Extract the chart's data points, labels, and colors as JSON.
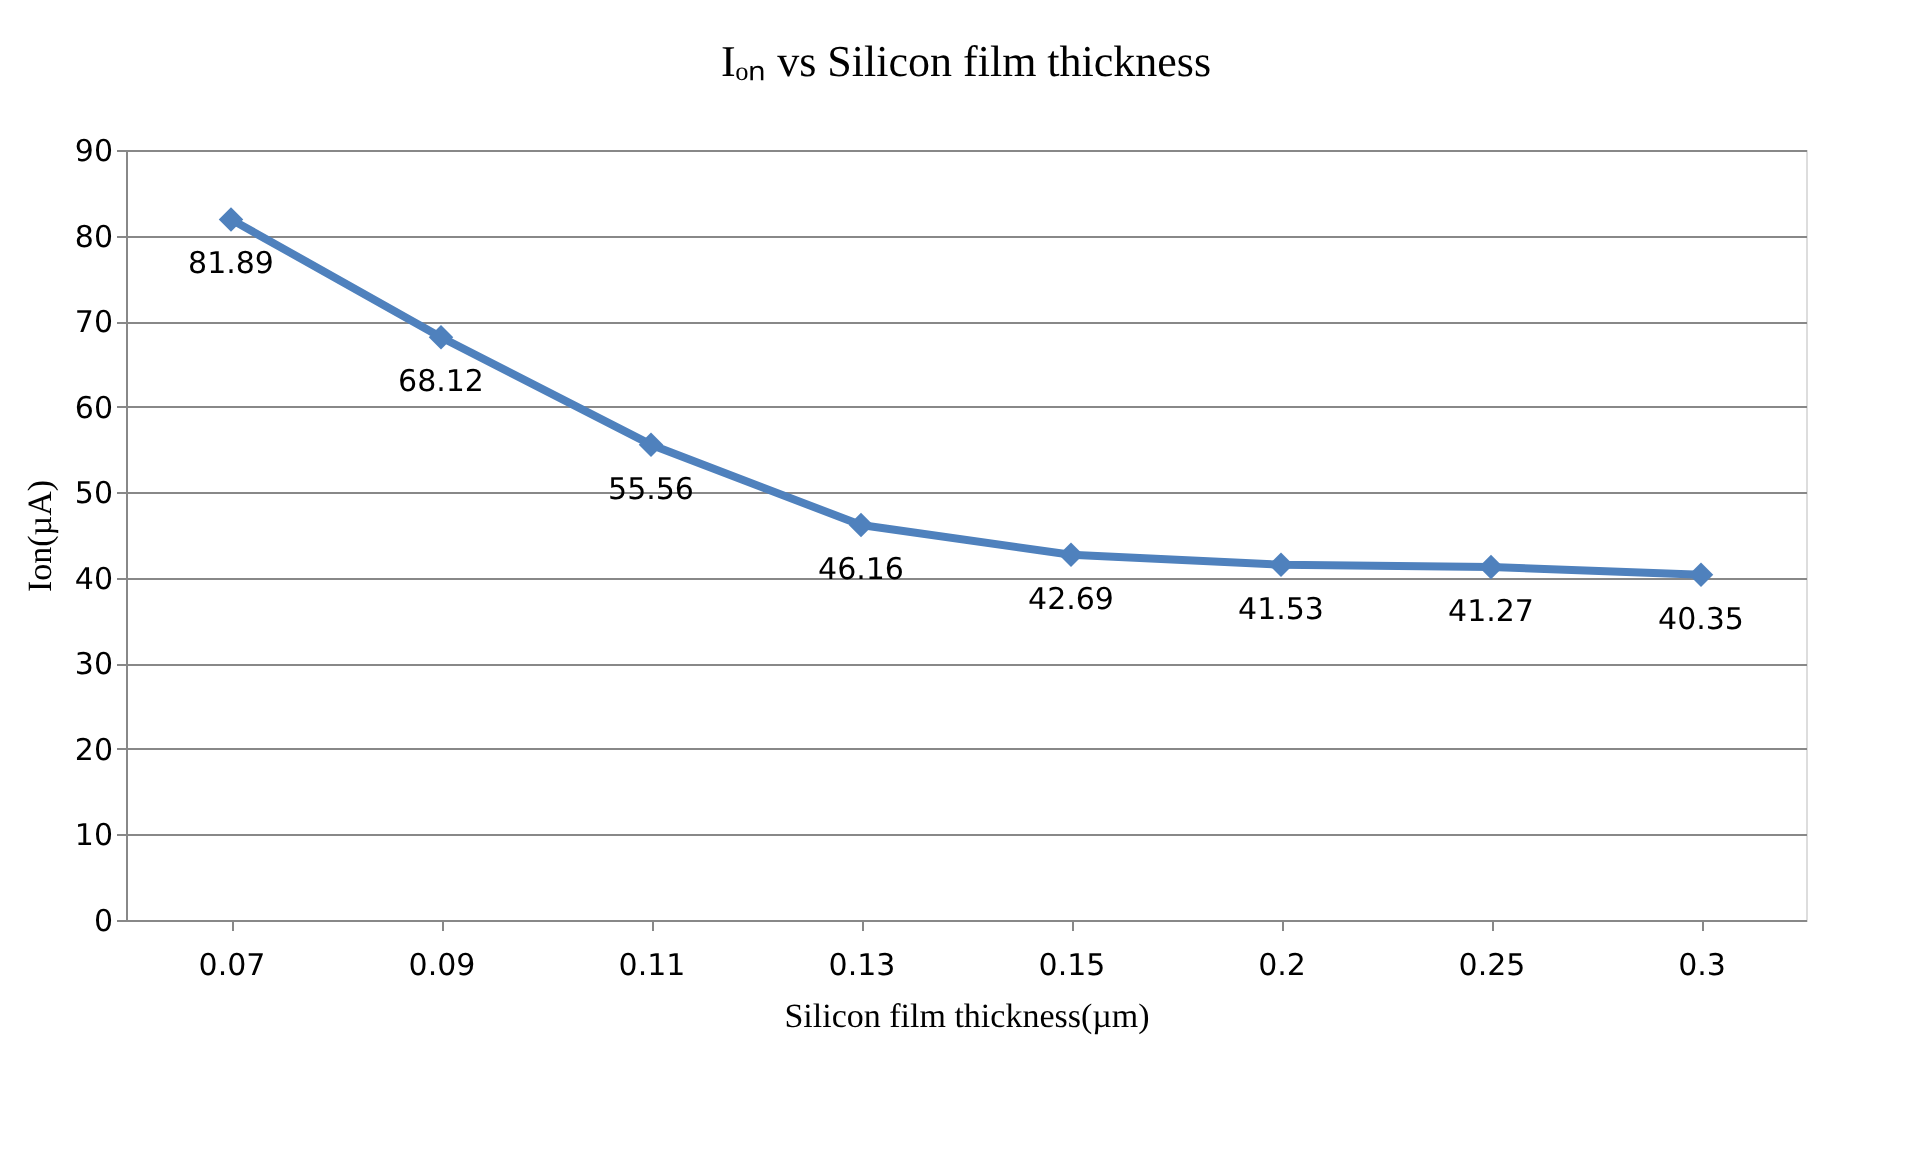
{
  "chart_data": {
    "type": "line",
    "title": "Iₒₙ vs Silicon film thickness",
    "xlabel": "Silicon film thickness(µm)",
    "ylabel": "Ion(µA)",
    "categories": [
      "0.07",
      "0.09",
      "0.11",
      "0.13",
      "0.15",
      "0.2",
      "0.25",
      "0.3"
    ],
    "series": [
      {
        "color": "#4f81bd",
        "values": [
          81.89,
          68.12,
          55.56,
          46.16,
          42.69,
          41.53,
          41.27,
          40.35
        ]
      }
    ],
    "ylim": [
      0,
      90
    ],
    "yticks": [
      0,
      10,
      20,
      30,
      40,
      50,
      60,
      70,
      80,
      90
    ],
    "grid": "y",
    "marker": "diamond",
    "line_style": "solid",
    "data_labels": true
  }
}
